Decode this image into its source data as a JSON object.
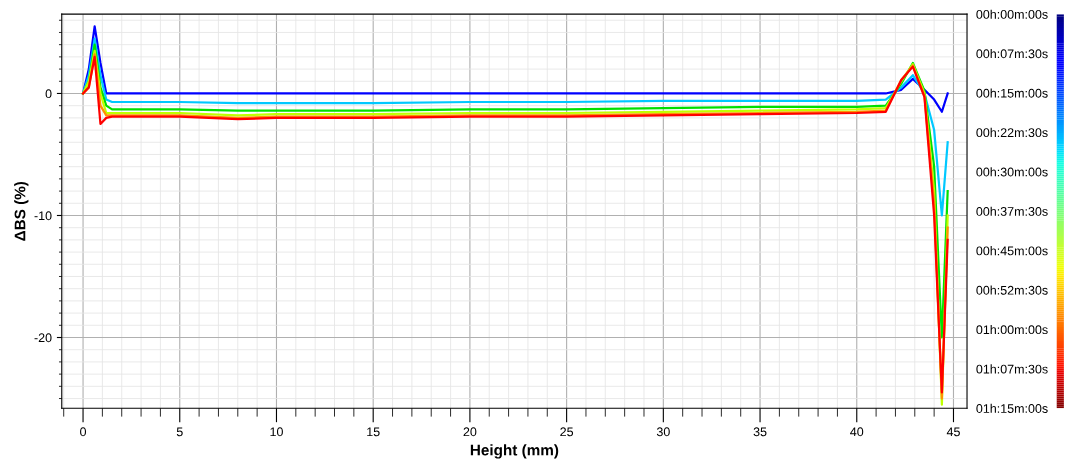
{
  "chart_data": {
    "type": "line",
    "xlabel": "Height (mm)",
    "ylabel": "ΔBS (%)",
    "xlim": [
      -1.1,
      45.7
    ],
    "ylim": [
      -25.8,
      6.5
    ],
    "xticks": [
      0,
      5,
      10,
      15,
      20,
      25,
      30,
      35,
      40,
      45
    ],
    "yticks": [
      -20,
      -10,
      0
    ],
    "grid": true,
    "marker": "none",
    "line_style": "solid",
    "clim": [
      0,
      75
    ],
    "cticks": [
      {
        "value": 0,
        "label": "00h:00m:00s"
      },
      {
        "value": 7.5,
        "label": "00h:07m:30s"
      },
      {
        "value": 15,
        "label": "00h:15m:00s"
      },
      {
        "value": 22.5,
        "label": "00h:22m:30s"
      },
      {
        "value": 30,
        "label": "00h:30m:00s"
      },
      {
        "value": 37.5,
        "label": "00h:37m:30s"
      },
      {
        "value": 45,
        "label": "00h:45m:00s"
      },
      {
        "value": 52.5,
        "label": "00h:52m:30s"
      },
      {
        "value": 60,
        "label": "01h:00m:00s"
      },
      {
        "value": 67.5,
        "label": "01h:07m:30s"
      },
      {
        "value": 75,
        "label": "01h:15m:00s"
      }
    ],
    "x": [
      0,
      0.3,
      0.6,
      0.9,
      1.2,
      1.5,
      5,
      8,
      10,
      15,
      20,
      25,
      30,
      35,
      40,
      41.5,
      42.3,
      42.9,
      43.5,
      44.0,
      44.4,
      44.7
    ],
    "series": [
      {
        "color": "#0000ff",
        "values": [
          0,
          2,
          5.5,
          2.5,
          0,
          0,
          0,
          0,
          0,
          0,
          0,
          0,
          0,
          0,
          0,
          0,
          0.3,
          1.2,
          0.3,
          -0.5,
          -1.5,
          0
        ]
      },
      {
        "color": "#00c8ff",
        "values": [
          0,
          1.5,
          4.5,
          1.5,
          -0.5,
          -0.7,
          -0.7,
          -0.8,
          -0.8,
          -0.8,
          -0.7,
          -0.7,
          -0.6,
          -0.6,
          -0.6,
          -0.5,
          0.5,
          1.5,
          0,
          -3,
          -10,
          -4
        ]
      },
      {
        "color": "#00e000",
        "values": [
          0,
          1,
          4,
          0.5,
          -1,
          -1.3,
          -1.3,
          -1.4,
          -1.4,
          -1.4,
          -1.3,
          -1.3,
          -1.2,
          -1.1,
          -1.1,
          -1,
          0.8,
          2.5,
          0.2,
          -6,
          -20,
          -8
        ]
      },
      {
        "color": "#c0ff00",
        "values": [
          0,
          1,
          3.5,
          0,
          -1.6,
          -1.6,
          -1.6,
          -1.8,
          -1.7,
          -1.7,
          -1.6,
          -1.6,
          -1.5,
          -1.4,
          -1.3,
          -1.2,
          1,
          2.4,
          0,
          -8,
          -25.5,
          -10
        ]
      },
      {
        "color": "#ff9000",
        "values": [
          0,
          0.5,
          3.2,
          -1,
          -1.8,
          -1.8,
          -1.8,
          -2,
          -1.9,
          -1.9,
          -1.8,
          -1.8,
          -1.7,
          -1.6,
          -1.5,
          -1.4,
          1.1,
          2.3,
          -0.2,
          -9,
          -25,
          -11
        ]
      },
      {
        "color": "#ff0000",
        "values": [
          0,
          0.5,
          3,
          -2.5,
          -2,
          -1.9,
          -1.9,
          -2.1,
          -2,
          -2,
          -1.9,
          -1.9,
          -1.8,
          -1.7,
          -1.6,
          -1.5,
          1.1,
          2.2,
          -0.3,
          -10,
          -24.5,
          -12
        ]
      }
    ]
  }
}
